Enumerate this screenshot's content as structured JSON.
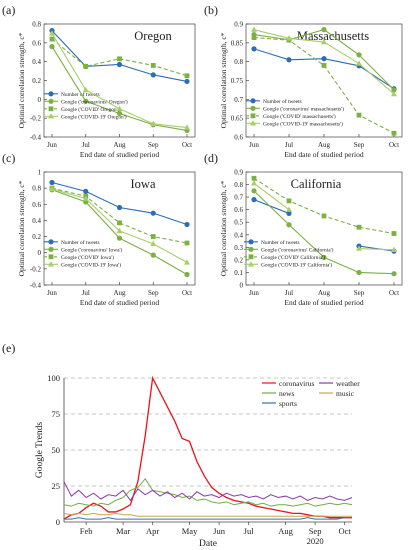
{
  "figure": {
    "panels": [
      "(a)",
      "(b)",
      "(c)",
      "(d)",
      "(e)"
    ]
  },
  "chart_data": [
    {
      "id": "a",
      "type": "line",
      "title": "Oregon",
      "xlabel": "End date of studied period",
      "ylabel": "Optimal correlation strength, c*",
      "categories": [
        "Jun",
        "Jul",
        "Aug",
        "Sep",
        "Oct"
      ],
      "ylim": [
        -0.4,
        0.8
      ],
      "yticks": [
        -0.4,
        -0.2,
        0,
        0.2,
        0.4,
        0.6,
        0.8
      ],
      "ytick_labels": [
        "-0.4",
        "-0.2",
        "0",
        "0.2",
        "0.4",
        "0.6",
        "0.8"
      ],
      "legend_position": "bottom-left",
      "series": [
        {
          "name": "Number of tweets",
          "values": [
            0.73,
            0.35,
            0.37,
            0.26,
            0.19
          ],
          "color": "#2d6db5",
          "dash": "solid",
          "marker": "circle"
        },
        {
          "name": "Google ('coronavirus' Oregon')",
          "values": [
            0.56,
            -0.02,
            -0.15,
            -0.27,
            -0.33
          ],
          "color": "#7bb043",
          "dash": "solid",
          "marker": "circle"
        },
        {
          "name": "Google ('COVID' Oregon')",
          "values": [
            0.64,
            0.35,
            0.43,
            0.36,
            0.25
          ],
          "color": "#7bb043",
          "dash": "dash",
          "marker": "square"
        },
        {
          "name": "Google ('COVID-19' Oregon')",
          "values": [
            0.7,
            0.1,
            -0.1,
            -0.26,
            -0.3
          ],
          "color": "#a8ce6a",
          "dash": "solid",
          "marker": "triangle"
        }
      ]
    },
    {
      "id": "b",
      "type": "line",
      "title": "Massachusetts",
      "xlabel": "End date of studied period",
      "ylabel": "Optimal correlation strength, c*",
      "categories": [
        "Jun",
        "Jul",
        "Aug",
        "Sep",
        "Oct"
      ],
      "ylim": [
        0.6,
        0.9
      ],
      "yticks": [
        0.6,
        0.65,
        0.7,
        0.75,
        0.8,
        0.85,
        0.9
      ],
      "ytick_labels": [
        "0.6",
        "0.65",
        "0.7",
        "0.75",
        "0.8",
        "0.85",
        "0.9"
      ],
      "legend_position": "bottom-left",
      "series": [
        {
          "name": "Number of tweets",
          "values": [
            0.834,
            0.805,
            0.808,
            0.789,
            0.728
          ],
          "color": "#2d6db5",
          "dash": "solid",
          "marker": "circle"
        },
        {
          "name": "Google ('coronavirus' massachusetts')",
          "values": [
            0.872,
            0.858,
            0.885,
            0.818,
            0.725
          ],
          "color": "#7bb043",
          "dash": "solid",
          "marker": "circle"
        },
        {
          "name": "Google ('COVID' massachusetts')",
          "values": [
            0.864,
            0.857,
            0.79,
            0.658,
            0.61
          ],
          "color": "#7bb043",
          "dash": "dash",
          "marker": "square"
        },
        {
          "name": "Google ('COVID-19' massachusetts')",
          "values": [
            0.885,
            0.862,
            0.852,
            0.795,
            0.714
          ],
          "color": "#a8ce6a",
          "dash": "solid",
          "marker": "triangle"
        }
      ]
    },
    {
      "id": "c",
      "type": "line",
      "title": "Iowa",
      "xlabel": "End date of studied period",
      "ylabel": "Optimal correlation strength, c*",
      "categories": [
        "Jun",
        "Jul",
        "Aug",
        "Sep",
        "Oct"
      ],
      "ylim": [
        -0.4,
        1
      ],
      "yticks": [
        -0.4,
        -0.2,
        0,
        0.2,
        0.4,
        0.6,
        0.8,
        1
      ],
      "ytick_labels": [
        "-0.4",
        "-0.2",
        "0",
        "0.2",
        "0.4",
        "0.6",
        "0.8",
        "1"
      ],
      "legend_position": "bottom-left",
      "series": [
        {
          "name": "Number of tweets",
          "values": [
            0.87,
            0.76,
            0.56,
            0.49,
            0.35
          ],
          "color": "#2d6db5",
          "dash": "solid",
          "marker": "circle"
        },
        {
          "name": "Google ('coronavirus' Iowa')",
          "values": [
            0.78,
            0.63,
            0.18,
            -0.03,
            -0.27
          ],
          "color": "#7bb043",
          "dash": "solid",
          "marker": "circle"
        },
        {
          "name": "Google ('COVID' Iowa')",
          "values": [
            0.8,
            0.7,
            0.37,
            0.2,
            0.12
          ],
          "color": "#7bb043",
          "dash": "dash",
          "marker": "square"
        },
        {
          "name": "Google ('COVID-19' Iowa')",
          "values": [
            0.79,
            0.67,
            0.27,
            0.11,
            -0.12
          ],
          "color": "#a8ce6a",
          "dash": "solid",
          "marker": "triangle"
        }
      ]
    },
    {
      "id": "d",
      "type": "line",
      "title": "California",
      "xlabel": "End date of studied period",
      "ylabel": "Optimal correlation strength, c*",
      "categories": [
        "Jun",
        "Jul",
        "Aug",
        "Sep",
        "Oct"
      ],
      "ylim": [
        0,
        0.9
      ],
      "yticks": [
        0,
        0.1,
        0.2,
        0.3,
        0.4,
        0.5,
        0.6,
        0.7,
        0.8,
        0.9
      ],
      "ytick_labels": [
        "0",
        "0.1",
        "0.2",
        "0.3",
        "0.4",
        "0.5",
        "0.6",
        "0.7",
        "0.8",
        "0.9"
      ],
      "legend_position": "bottom-left",
      "series": [
        {
          "name": "Number of tweets",
          "values": [
            0.68,
            0.57,
            null,
            0.31,
            0.27
          ],
          "color": "#2d6db5",
          "dash": "solid",
          "marker": "circle"
        },
        {
          "name": "Google ('coronavirus' California')",
          "values": [
            0.75,
            0.48,
            0.22,
            0.1,
            0.09
          ],
          "color": "#7bb043",
          "dash": "solid",
          "marker": "circle"
        },
        {
          "name": "Google ('COVID' California')",
          "values": [
            0.85,
            0.67,
            0.55,
            0.46,
            0.41
          ],
          "color": "#7bb043",
          "dash": "dash",
          "marker": "square"
        },
        {
          "name": "Google ('COVID-19' California')",
          "values": [
            0.81,
            0.6,
            null,
            0.29,
            0.28
          ],
          "color": "#a8ce6a",
          "dash": "solid",
          "marker": "triangle"
        }
      ]
    },
    {
      "id": "e",
      "type": "line",
      "xlabel": "Date",
      "ylabel": "Google Trends",
      "ylim": [
        0,
        100
      ],
      "yticks": [
        0,
        25,
        50,
        75,
        100
      ],
      "ytick_labels": [
        "0",
        "25",
        "50",
        "75",
        "100"
      ],
      "xlim": [
        0,
        39
      ],
      "xticks": [
        3,
        8,
        12,
        17,
        21,
        25,
        30,
        34,
        38
      ],
      "xtick_labels": [
        "Feb",
        "Mar",
        "Apr",
        "May",
        "Jun",
        "Jul",
        "Aug",
        "Sep",
        "Oct"
      ],
      "year_label": "2020",
      "grid": "horizontal dashed",
      "legend_position": "top-right",
      "series": [
        {
          "name": "coronavirus",
          "color": "#e8141a",
          "values": [
            2,
            5,
            6,
            10,
            13,
            11,
            7,
            7,
            9,
            12,
            28,
            60,
            100,
            90,
            80,
            70,
            58,
            56,
            42,
            32,
            24,
            20,
            17,
            15,
            14,
            13,
            11,
            10,
            9,
            8,
            7,
            6,
            6,
            5,
            4,
            4,
            3,
            3,
            3,
            3
          ]
        },
        {
          "name": "news",
          "color": "#6fae46",
          "values": [
            12,
            11,
            13,
            12,
            11,
            13,
            12,
            15,
            17,
            22,
            24,
            30,
            22,
            21,
            20,
            19,
            17,
            18,
            15,
            16,
            14,
            13,
            14,
            12,
            13,
            14,
            12,
            13,
            11,
            12,
            12,
            11,
            12,
            13,
            11,
            12,
            13,
            12,
            13,
            12
          ]
        },
        {
          "name": "sports",
          "color": "#3b6fb6",
          "values": [
            2,
            2,
            3,
            2,
            2,
            2,
            3,
            2,
            2,
            2,
            2,
            2,
            2,
            2,
            2,
            2,
            2,
            2,
            2,
            2,
            2,
            2,
            2,
            2,
            2,
            2,
            2,
            2,
            2,
            2,
            2,
            2,
            2,
            3,
            2,
            2,
            2,
            2,
            3,
            3
          ]
        },
        {
          "name": "weather",
          "color": "#8a3aa8",
          "values": [
            28,
            18,
            22,
            17,
            20,
            16,
            19,
            18,
            22,
            15,
            23,
            19,
            22,
            18,
            21,
            17,
            20,
            16,
            21,
            18,
            19,
            17,
            20,
            18,
            19,
            17,
            18,
            16,
            19,
            17,
            18,
            16,
            18,
            15,
            17,
            16,
            18,
            16,
            15,
            17
          ]
        },
        {
          "name": "music",
          "color": "#c8a54c",
          "values": [
            6,
            5,
            6,
            5,
            6,
            5,
            5,
            6,
            5,
            5,
            4,
            4,
            4,
            4,
            4,
            4,
            4,
            4,
            4,
            4,
            4,
            4,
            4,
            4,
            4,
            4,
            4,
            4,
            4,
            4,
            4,
            4,
            4,
            4,
            4,
            4,
            4,
            4,
            4,
            4
          ]
        }
      ]
    }
  ]
}
